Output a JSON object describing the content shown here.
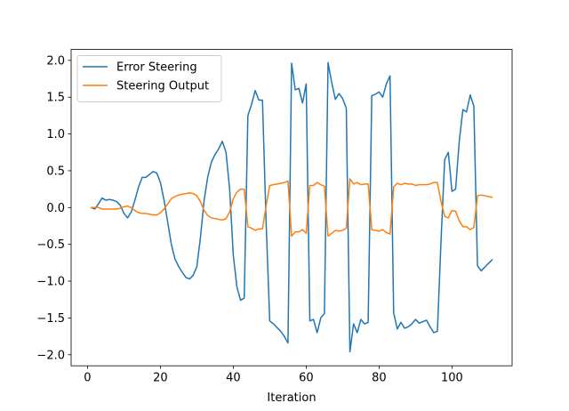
{
  "chart_data": {
    "type": "line",
    "title": "",
    "xlabel": "Iteration",
    "ylabel": "",
    "xlim": [
      -4.5,
      116.5
    ],
    "ylim": [
      -2.15,
      2.15
    ],
    "xticks": [
      0,
      20,
      40,
      60,
      80,
      100
    ],
    "yticks": [
      -2.0,
      -1.5,
      -1.0,
      -0.5,
      0.0,
      0.5,
      1.0,
      1.5,
      2.0
    ],
    "xtick_labels": [
      "0",
      "20",
      "40",
      "60",
      "80",
      "100"
    ],
    "ytick_labels": [
      "−2.0",
      "−1.5",
      "−1.0",
      "−0.5",
      "0.0",
      "0.5",
      "1.0",
      "1.5",
      "2.0"
    ],
    "legend_position": "top-left",
    "grid": false,
    "series": [
      {
        "name": "Error Steering",
        "color": "#1f77b4",
        "x": [
          1,
          2,
          3,
          4,
          5,
          6,
          7,
          8,
          9,
          10,
          11,
          12,
          13,
          14,
          15,
          16,
          17,
          18,
          19,
          20,
          21,
          22,
          23,
          24,
          25,
          26,
          27,
          28,
          29,
          30,
          31,
          32,
          33,
          34,
          35,
          36,
          37,
          38,
          39,
          40,
          41,
          42,
          43,
          44,
          45,
          46,
          47,
          48,
          49,
          50,
          51,
          52,
          53,
          54,
          55,
          56,
          57,
          58,
          59,
          60,
          61,
          62,
          63,
          64,
          65,
          66,
          67,
          68,
          69,
          70,
          71,
          72,
          73,
          74,
          75,
          76,
          77,
          78,
          79,
          80,
          81,
          82,
          83,
          84,
          85,
          86,
          87,
          88,
          89,
          90,
          91,
          92,
          93,
          94,
          95,
          96,
          97,
          98,
          99,
          100,
          101,
          102,
          103,
          104,
          105,
          106,
          107,
          108,
          109,
          110,
          111
        ],
        "y": [
          0.0,
          -0.02,
          0.05,
          0.13,
          0.1,
          0.11,
          0.1,
          0.08,
          0.03,
          -0.08,
          -0.14,
          -0.06,
          0.1,
          0.28,
          0.41,
          0.41,
          0.45,
          0.49,
          0.47,
          0.34,
          0.1,
          -0.2,
          -0.5,
          -0.7,
          -0.8,
          -0.88,
          -0.95,
          -0.97,
          -0.92,
          -0.8,
          -0.4,
          0.1,
          0.42,
          0.62,
          0.72,
          0.8,
          0.9,
          0.75,
          0.25,
          -0.65,
          -1.08,
          -1.26,
          -1.23,
          1.25,
          1.4,
          1.59,
          1.46,
          1.46,
          -0.2,
          -1.54,
          -1.58,
          -1.63,
          -1.68,
          -1.75,
          -1.84,
          1.96,
          1.6,
          1.62,
          1.42,
          1.68,
          -1.54,
          -1.52,
          -1.7,
          -1.5,
          -1.44,
          1.97,
          1.7,
          1.47,
          1.55,
          1.48,
          1.35,
          -1.96,
          -1.58,
          -1.7,
          -1.52,
          -1.58,
          -1.56,
          1.52,
          1.54,
          1.57,
          1.5,
          1.68,
          1.79,
          -1.43,
          -1.65,
          -1.56,
          -1.64,
          -1.62,
          -1.58,
          -1.52,
          -1.57,
          -1.55,
          -1.53,
          -1.62,
          -1.7,
          -1.68,
          -0.45,
          0.65,
          0.75,
          0.22,
          0.25,
          0.9,
          1.33,
          1.3,
          1.53,
          1.38,
          -0.79,
          -0.86,
          -0.81,
          -0.76,
          -0.71
        ]
      },
      {
        "name": "Steering Output",
        "color": "#ff7f0e",
        "x": [
          1,
          2,
          3,
          4,
          5,
          6,
          7,
          8,
          9,
          10,
          11,
          12,
          13,
          14,
          15,
          16,
          17,
          18,
          19,
          20,
          21,
          22,
          23,
          24,
          25,
          26,
          27,
          28,
          29,
          30,
          31,
          32,
          33,
          34,
          35,
          36,
          37,
          38,
          39,
          40,
          41,
          42,
          43,
          44,
          45,
          46,
          47,
          48,
          49,
          50,
          51,
          52,
          53,
          54,
          55,
          56,
          57,
          58,
          59,
          60,
          61,
          62,
          63,
          64,
          65,
          66,
          67,
          68,
          69,
          70,
          71,
          72,
          73,
          74,
          75,
          76,
          77,
          78,
          79,
          80,
          81,
          82,
          83,
          84,
          85,
          86,
          87,
          88,
          89,
          90,
          91,
          92,
          93,
          94,
          95,
          96,
          97,
          98,
          99,
          100,
          101,
          102,
          103,
          104,
          105,
          106,
          107,
          108,
          109,
          110,
          111
        ],
        "y": [
          0.0,
          0.0,
          0.0,
          -0.02,
          -0.02,
          -0.02,
          -0.02,
          -0.02,
          -0.01,
          0.01,
          0.02,
          0.0,
          -0.04,
          -0.07,
          -0.08,
          -0.08,
          -0.09,
          -0.1,
          -0.1,
          -0.07,
          -0.02,
          0.05,
          0.12,
          0.15,
          0.17,
          0.18,
          0.19,
          0.2,
          0.19,
          0.16,
          0.08,
          -0.04,
          -0.11,
          -0.14,
          -0.15,
          -0.16,
          -0.17,
          -0.15,
          -0.06,
          0.12,
          0.21,
          0.25,
          0.25,
          -0.26,
          -0.28,
          -0.31,
          -0.29,
          -0.29,
          0.02,
          0.3,
          0.31,
          0.32,
          0.33,
          0.34,
          0.36,
          -0.39,
          -0.33,
          -0.33,
          -0.3,
          -0.35,
          0.3,
          0.3,
          0.34,
          0.31,
          0.29,
          -0.39,
          -0.35,
          -0.31,
          -0.32,
          -0.31,
          -0.28,
          0.39,
          0.32,
          0.34,
          0.31,
          0.32,
          0.32,
          -0.3,
          -0.31,
          -0.32,
          -0.3,
          -0.34,
          -0.36,
          0.28,
          0.33,
          0.31,
          0.33,
          0.32,
          0.32,
          0.3,
          0.31,
          0.31,
          0.31,
          0.32,
          0.34,
          0.34,
          0.08,
          -0.12,
          -0.14,
          -0.04,
          -0.05,
          -0.18,
          -0.26,
          -0.26,
          -0.3,
          -0.27,
          0.16,
          0.17,
          0.16,
          0.15,
          0.14
        ]
      }
    ]
  }
}
